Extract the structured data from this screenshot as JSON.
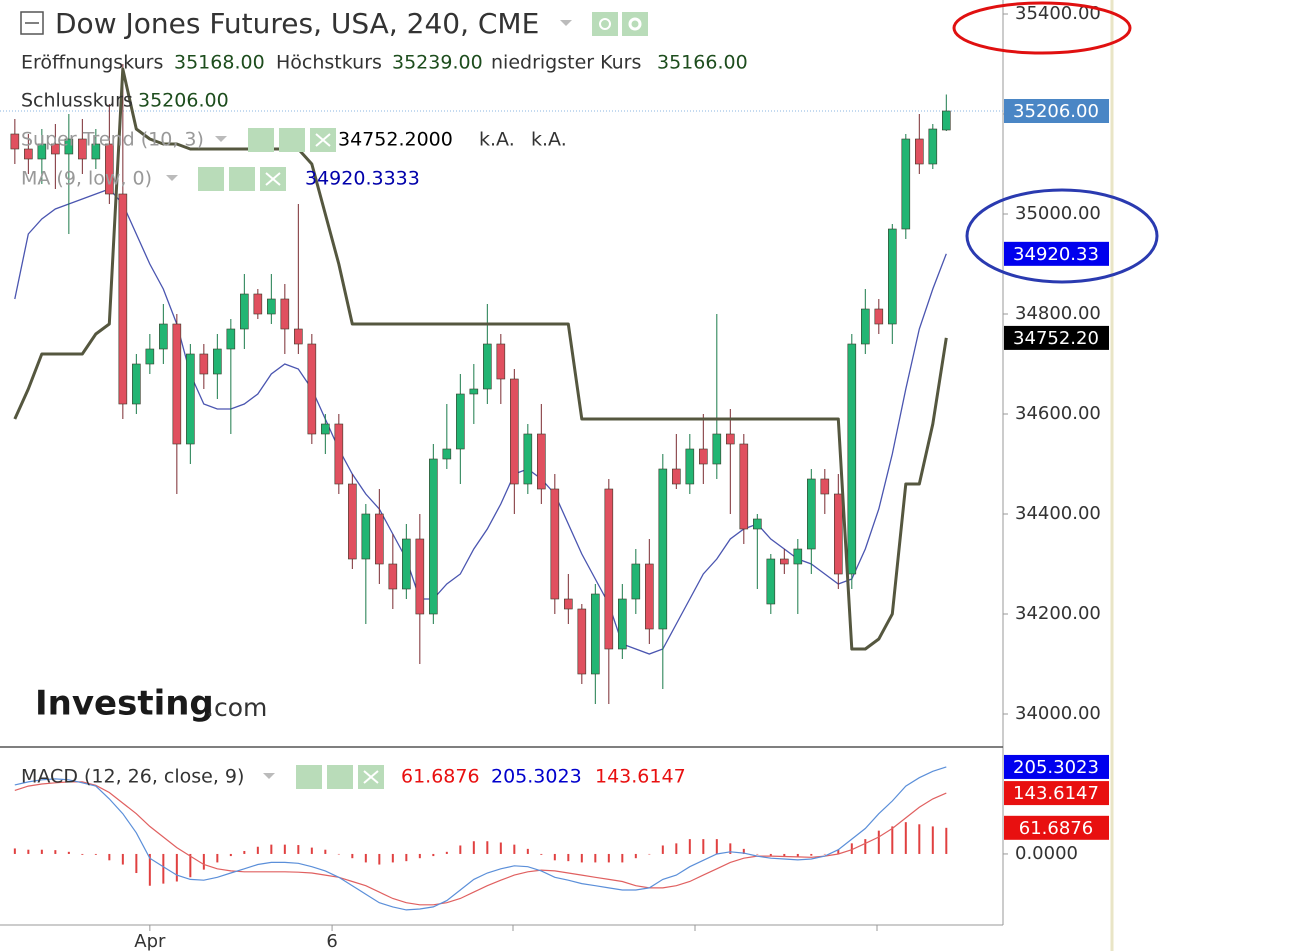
{
  "chart_data": {
    "type": "candlestick",
    "title": "Dow Jones Futures, USA, 240, CME",
    "ohlc_legend": [
      {
        "name": "Eröffnungskurs",
        "value": {
          "value": 35168,
          "label": "35168.00"
        }
      },
      {
        "name": "Höchstkurs",
        "value": {
          "value": 35239,
          "label": "35239.00"
        }
      },
      {
        "name": "niedrigster Kurs",
        "value": {
          "value": 35166,
          "label": "35166.00"
        }
      },
      {
        "name": "Schlusskurs",
        "value": {
          "value": 35206,
          "label": "35206.00"
        }
      }
    ],
    "colors": {
      "up": "#22b573",
      "down": "#e0505f",
      "outline": "#3a3a2a"
    },
    "candles": [
      [
        35160,
        35190,
        35100,
        35130
      ],
      [
        35130,
        35160,
        35080,
        35110
      ],
      [
        35110,
        35170,
        35060,
        35140
      ],
      [
        35140,
        35180,
        35050,
        35120
      ],
      [
        35120,
        35200,
        34960,
        35150
      ],
      [
        35150,
        35190,
        35080,
        35110
      ],
      [
        35110,
        35170,
        35090,
        35140
      ],
      [
        35140,
        35220,
        35020,
        35040
      ],
      [
        35040,
        35300,
        34590,
        34620
      ],
      [
        34620,
        34720,
        34600,
        34700
      ],
      [
        34700,
        34760,
        34680,
        34730
      ],
      [
        34730,
        34820,
        34700,
        34780
      ],
      [
        34780,
        34800,
        34440,
        34540
      ],
      [
        34540,
        34740,
        34500,
        34720
      ],
      [
        34720,
        34740,
        34650,
        34680
      ],
      [
        34680,
        34760,
        34630,
        34730
      ],
      [
        34730,
        34790,
        34560,
        34770
      ],
      [
        34770,
        34880,
        34730,
        34840
      ],
      [
        34840,
        34850,
        34790,
        34800
      ],
      [
        34800,
        34880,
        34780,
        34830
      ],
      [
        34830,
        34860,
        34720,
        34770
      ],
      [
        34770,
        35020,
        34720,
        34740
      ],
      [
        34740,
        34760,
        34540,
        34560
      ],
      [
        34560,
        34600,
        34520,
        34580
      ],
      [
        34580,
        34600,
        34440,
        34460
      ],
      [
        34460,
        34480,
        34290,
        34310
      ],
      [
        34310,
        34420,
        34180,
        34400
      ],
      [
        34400,
        34450,
        34260,
        34300
      ],
      [
        34300,
        34360,
        34210,
        34250
      ],
      [
        34250,
        34380,
        34230,
        34350
      ],
      [
        34350,
        34400,
        34100,
        34200
      ],
      [
        34200,
        34540,
        34180,
        34510
      ],
      [
        34510,
        34620,
        34490,
        34530
      ],
      [
        34530,
        34680,
        34460,
        34640
      ],
      [
        34640,
        34700,
        34580,
        34650
      ],
      [
        34650,
        34820,
        34620,
        34740
      ],
      [
        34740,
        34760,
        34620,
        34670
      ],
      [
        34670,
        34690,
        34400,
        34460
      ],
      [
        34460,
        34580,
        34440,
        34560
      ],
      [
        34560,
        34620,
        34420,
        34450
      ],
      [
        34450,
        34480,
        34200,
        34230
      ],
      [
        34230,
        34280,
        34180,
        34210
      ],
      [
        34210,
        34220,
        34060,
        34080
      ],
      [
        34080,
        34260,
        34020,
        34240
      ],
      [
        34450,
        34470,
        34020,
        34130
      ],
      [
        34130,
        34260,
        34110,
        34230
      ],
      [
        34230,
        34330,
        34200,
        34300
      ],
      [
        34300,
        34350,
        34140,
        34170
      ],
      [
        34170,
        34520,
        34050,
        34490
      ],
      [
        34490,
        34560,
        34450,
        34460
      ],
      [
        34460,
        34560,
        34440,
        34530
      ],
      [
        34530,
        34600,
        34460,
        34500
      ],
      [
        34500,
        34800,
        34470,
        34560
      ],
      [
        34560,
        34610,
        34400,
        34540
      ],
      [
        34540,
        34560,
        34340,
        34370
      ],
      [
        34370,
        34400,
        34250,
        34390
      ],
      [
        34220,
        34320,
        34200,
        34310
      ],
      [
        34310,
        34330,
        34280,
        34300
      ],
      [
        34300,
        34350,
        34200,
        34330
      ],
      [
        34330,
        34490,
        34280,
        34470
      ],
      [
        34470,
        34490,
        34400,
        34440
      ],
      [
        34440,
        34480,
        34250,
        34280
      ],
      [
        34280,
        34760,
        34250,
        34740
      ],
      [
        34740,
        34850,
        34720,
        34810
      ],
      [
        34810,
        34830,
        34760,
        34780
      ],
      [
        34780,
        34980,
        34740,
        34970
      ],
      [
        34970,
        35160,
        34950,
        35150
      ],
      [
        35150,
        35200,
        35080,
        35100
      ],
      [
        35100,
        35180,
        35090,
        35170
      ],
      [
        35168,
        35239,
        35166,
        35206
      ]
    ],
    "indicators": [
      {
        "name": "Super Trend (10, 3)",
        "color": "#55573f",
        "value_label": {
          "value": 34752.2,
          "label": "34752.2000"
        },
        "extra_labels": [
          "k.A.",
          "k.A."
        ],
        "values": [
          34590,
          34650,
          34720,
          34720,
          34720,
          34720,
          34760,
          34780,
          35290,
          35170,
          35150,
          35140,
          35140,
          35130,
          35130,
          35130,
          35130,
          35130,
          35130,
          35130,
          35130,
          35130,
          35100,
          35000,
          34900,
          34780,
          34780,
          34780,
          34780,
          34780,
          34780,
          34780,
          34780,
          34780,
          34780,
          34780,
          34780,
          34780,
          34780,
          34780,
          34780,
          34780,
          34590,
          34590,
          34590,
          34590,
          34590,
          34590,
          34590,
          34590,
          34590,
          34590,
          34590,
          34590,
          34590,
          34590,
          34590,
          34590,
          34590,
          34590,
          34590,
          34590,
          34130,
          34130,
          34150,
          34200,
          34460,
          34460,
          34580,
          34752.2
        ]
      },
      {
        "name": "MA (9, low, 0)",
        "color": "#4a55b0",
        "value_label": {
          "value": 34920.3333,
          "label": "34920.3333"
        },
        "values": [
          34830,
          34960,
          34990,
          35010,
          35020,
          35030,
          35040,
          35050,
          35020,
          34960,
          34900,
          34850,
          34780,
          34680,
          34620,
          34610,
          34610,
          34620,
          34640,
          34680,
          34700,
          34690,
          34650,
          34590,
          34530,
          34480,
          34440,
          34410,
          34360,
          34310,
          34230,
          34230,
          34260,
          34280,
          34330,
          34370,
          34420,
          34480,
          34490,
          34470,
          34440,
          34380,
          34320,
          34270,
          34220,
          34140,
          34130,
          34120,
          34130,
          34180,
          34230,
          34280,
          34310,
          34350,
          34370,
          34380,
          34350,
          34330,
          34310,
          34300,
          34280,
          34260,
          34270,
          34330,
          34410,
          34520,
          34650,
          34770,
          34850,
          34920.33
        ]
      }
    ],
    "price_labels": [
      {
        "value": 35206,
        "label": "35206.00",
        "color": "#4a86c5"
      },
      {
        "value": 34920.33,
        "label": "34920.33",
        "color": "#0000ee"
      },
      {
        "value": 34752.2,
        "label": "34752.20",
        "color": "#000000"
      }
    ],
    "xlim": [
      -1.1,
      73.2
    ],
    "ylim": [
      33936,
      35428
    ],
    "yticks": [
      {
        "value": 35400,
        "label": "35400.00"
      },
      {
        "value": 35200,
        "label": "35200.00"
      },
      {
        "value": 35000,
        "label": "35000.00"
      },
      {
        "value": 34800,
        "label": "34800.00"
      },
      {
        "value": 34600,
        "label": "34600.00"
      },
      {
        "value": 34400,
        "label": "34400.00"
      },
      {
        "value": 34200,
        "label": "34200.00"
      },
      {
        "value": 34000,
        "label": "34000.00"
      }
    ],
    "xticks": [
      {
        "value": 10,
        "label": "Apr"
      },
      {
        "value": 23.5,
        "label": "6"
      }
    ],
    "logo": {
      "main": "Investing",
      "suffix": ".com"
    },
    "macd": {
      "name": "MACD (12, 26, close, 9)",
      "ylim": [
        -170,
        250
      ],
      "yticks": [
        {
          "value": 0,
          "label": "0.0000"
        }
      ],
      "histogram": {
        "color": "#e04040",
        "value_label": {
          "value": 61.6876,
          "label": "61.6876"
        },
        "values": [
          13,
          10,
          10,
          9,
          5,
          -2,
          -2,
          -15,
          -25,
          -45,
          -75,
          -70,
          -65,
          -55,
          -37,
          -20,
          -5,
          7,
          17,
          22,
          22,
          21,
          15,
          10,
          0,
          -10,
          -20,
          -25,
          -20,
          -17,
          -10,
          -5,
          5,
          20,
          30,
          30,
          27,
          22,
          12,
          -2,
          -15,
          -17,
          -20,
          -20,
          -20,
          -20,
          -10,
          0,
          20,
          25,
          35,
          35,
          35,
          25,
          12,
          0,
          -5,
          -6,
          -7,
          -4,
          0,
          10,
          25,
          35,
          55,
          65,
          75,
          70,
          65,
          61.6876
        ]
      },
      "macd": {
        "color": "#5b8fd9",
        "value_label": {
          "value": 205.3023,
          "label": "205.3023"
        },
        "values": [
          163,
          170,
          175,
          177,
          175,
          168,
          160,
          130,
          95,
          50,
          -10,
          -30,
          -50,
          -60,
          -62,
          -55,
          -45,
          -35,
          -25,
          -20,
          -20,
          -22,
          -30,
          -40,
          -55,
          -75,
          -95,
          -115,
          -125,
          -132,
          -130,
          -125,
          -110,
          -85,
          -60,
          -45,
          -35,
          -28,
          -30,
          -40,
          -55,
          -62,
          -70,
          -75,
          -80,
          -85,
          -85,
          -80,
          -60,
          -50,
          -30,
          -15,
          0,
          5,
          2,
          -5,
          -10,
          -12,
          -14,
          -12,
          -5,
          10,
          35,
          60,
          95,
          125,
          160,
          180,
          195,
          205.3023
        ]
      },
      "signal": {
        "color": "#e06060",
        "value_label": {
          "value": 143.6147,
          "label": "143.6147"
        },
        "values": [
          150,
          160,
          165,
          168,
          170,
          170,
          162,
          145,
          120,
          95,
          65,
          40,
          15,
          -5,
          -25,
          -35,
          -40,
          -42,
          -42,
          -42,
          -42,
          -43,
          -45,
          -50,
          -55,
          -65,
          -75,
          -90,
          -105,
          -115,
          -120,
          -120,
          -115,
          -105,
          -90,
          -75,
          -62,
          -50,
          -42,
          -38,
          -40,
          -45,
          -50,
          -55,
          -60,
          -65,
          -75,
          -80,
          -80,
          -75,
          -65,
          -50,
          -35,
          -20,
          -10,
          -5,
          -5,
          -6,
          -7,
          -8,
          -5,
          0,
          10,
          25,
          40,
          60,
          85,
          110,
          130,
          143.6147
        ]
      },
      "badges": [
        {
          "value": 205.3023,
          "label": "205.3023",
          "color": "#0000ee"
        },
        {
          "value": 143.6147,
          "label": "143.6147",
          "color": "#e81010"
        },
        {
          "value": 61.6876,
          "label": "61.6876",
          "color": "#e81010"
        }
      ]
    }
  }
}
